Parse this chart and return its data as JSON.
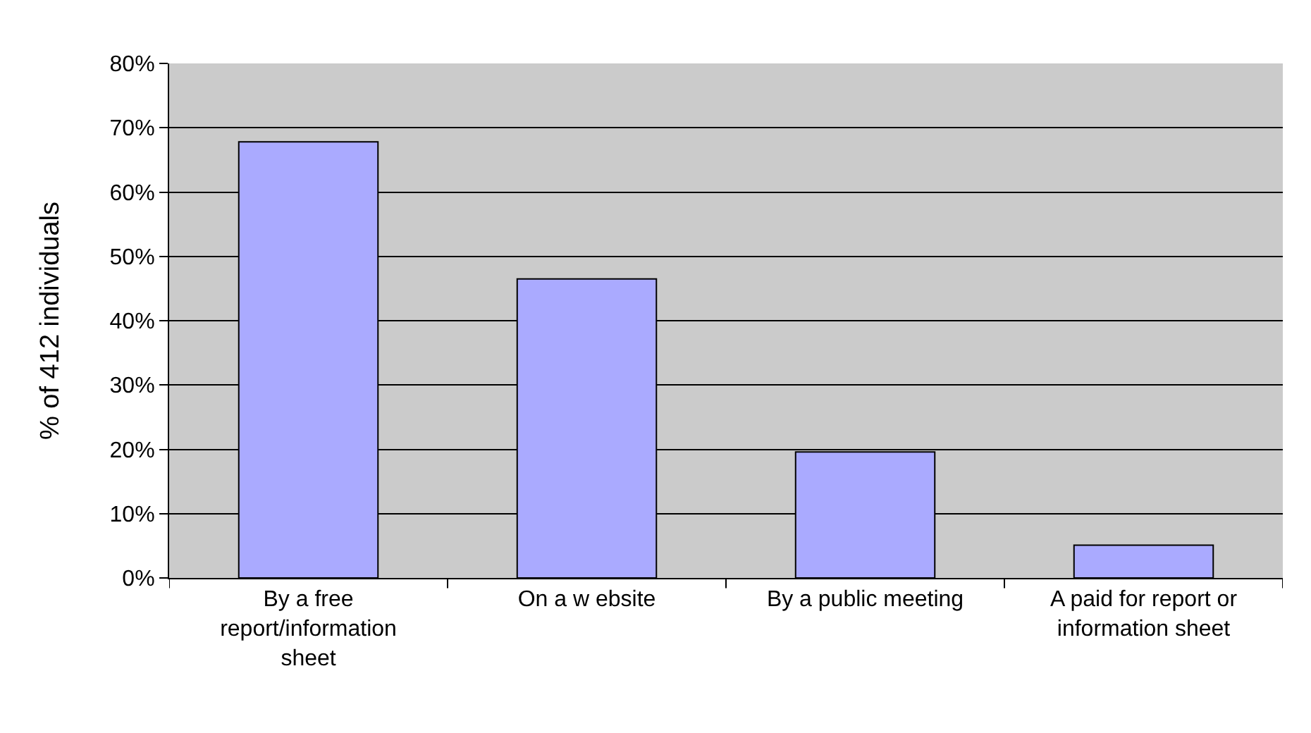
{
  "chart_data": {
    "type": "bar",
    "ylabel": "% of 412 individuals",
    "categories": [
      "By a free\nreport/information\nsheet",
      "On a w ebsite",
      "By a public meeting",
      "A paid for report or\ninformation sheet"
    ],
    "values": [
      67.8,
      46.5,
      19.6,
      5.1
    ],
    "color": "#aaaaff",
    "ylim": [
      0,
      80
    ],
    "yticks": [
      {
        "value": 0,
        "label": "0%"
      },
      {
        "value": 10,
        "label": "10%"
      },
      {
        "value": 20,
        "label": "20%"
      },
      {
        "value": 30,
        "label": "30%"
      },
      {
        "value": 40,
        "label": "40%"
      },
      {
        "value": 50,
        "label": "50%"
      },
      {
        "value": 60,
        "label": "60%"
      },
      {
        "value": 70,
        "label": "70%"
      },
      {
        "value": 80,
        "label": "80%"
      }
    ],
    "grid": "y"
  }
}
